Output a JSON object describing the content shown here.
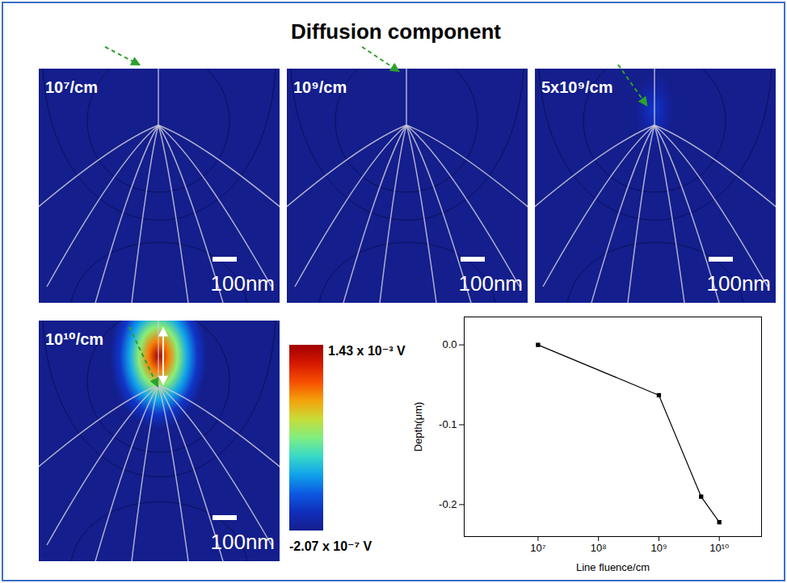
{
  "title": "Diffusion component",
  "panels": [
    {
      "label": "10⁷/cm",
      "peak_potential": -2.07e-07
    },
    {
      "label": "10⁹/cm",
      "peak_potential": -2.07e-07
    },
    {
      "label": "5x10⁹/cm",
      "peak_potential": 0.0002
    },
    {
      "label": "10¹⁰/cm",
      "peak_potential": 0.00143
    }
  ],
  "scale_bar": "100nm",
  "colorbar": {
    "range": [
      -2.07e-07,
      0.00143
    ],
    "ticks": [
      {
        "value": -2.07e-07,
        "label": "-2.07 x 10⁻⁷ V"
      },
      {
        "value": 0.00143,
        "label": "1.43 x 10⁻³ V"
      }
    ]
  },
  "chart_data": {
    "type": "line",
    "x": [
      10000000,
      1000000000,
      5000000000,
      10000000000
    ],
    "values": [
      0,
      -0.063,
      -0.19,
      -0.222
    ],
    "xlabel": "Line fluence/cm",
    "ylabel": "Depth(μm)",
    "log": "x",
    "xlim": [
      600000,
      50000000000
    ],
    "xticks": [
      {
        "value": 10000000,
        "label": "10⁷"
      },
      {
        "value": 100000000,
        "label": "10⁸"
      },
      {
        "value": 1000000000,
        "label": "10⁹"
      },
      {
        "value": 10000000000,
        "label": "10¹⁰"
      }
    ],
    "ylim": [
      -0.24,
      0.035
    ],
    "yticks": [
      {
        "value": 0,
        "label": "0.0"
      },
      {
        "value": -0.1,
        "label": "-0.1"
      },
      {
        "value": -0.2,
        "label": "-0.2"
      }
    ],
    "marker": "square",
    "color": "#000000"
  }
}
